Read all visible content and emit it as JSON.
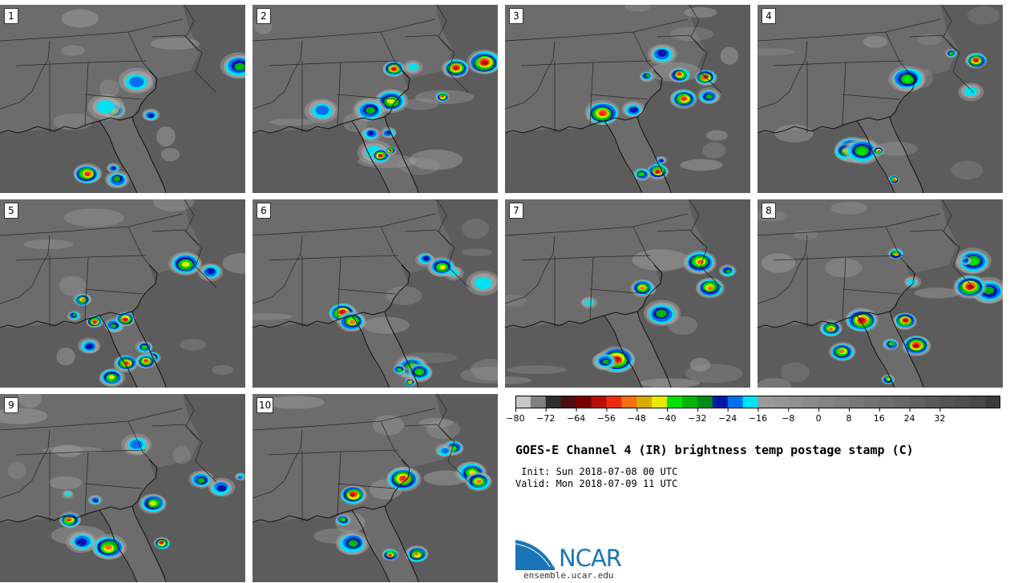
{
  "panels": [
    {
      "label": "1"
    },
    {
      "label": "2"
    },
    {
      "label": "3"
    },
    {
      "label": "4"
    },
    {
      "label": "5"
    },
    {
      "label": "6"
    },
    {
      "label": "7"
    },
    {
      "label": "8"
    },
    {
      "label": "9"
    },
    {
      "label": "10"
    }
  ],
  "colorbar": {
    "colors": [
      "#c8c8c8",
      "#808080",
      "#2e2e2e",
      "#4d1010",
      "#7a0000",
      "#b80d0d",
      "#f02a0d",
      "#f2700d",
      "#d9ab00",
      "#e8e800",
      "#00e200",
      "#00b400",
      "#008c1a",
      "#0018a8",
      "#0070f0",
      "#00e2f2",
      "#9a9a9a",
      "#969696",
      "#909090",
      "#8a8a8a",
      "#848484",
      "#7e7e7e",
      "#787878",
      "#727272",
      "#6c6c6c",
      "#666666",
      "#606060",
      "#5a5a5a",
      "#545454",
      "#4e4e4e",
      "#484848",
      "#3c3c3c"
    ],
    "ticks": [
      "−80",
      "−72",
      "−64",
      "−56",
      "−48",
      "−40",
      "−32",
      "−24",
      "−16",
      "−8",
      "0",
      "8",
      "16",
      "24",
      "32"
    ]
  },
  "title": "GOES-E Channel 4 (IR) brightness temp postage stamp (C)",
  "init": " Init: Sun 2018-07-08 00 UTC",
  "valid": "Valid: Mon 2018-07-09 11 UTC",
  "logo": {
    "name": "NCAR",
    "url": "ensemble.ucar.edu"
  }
}
